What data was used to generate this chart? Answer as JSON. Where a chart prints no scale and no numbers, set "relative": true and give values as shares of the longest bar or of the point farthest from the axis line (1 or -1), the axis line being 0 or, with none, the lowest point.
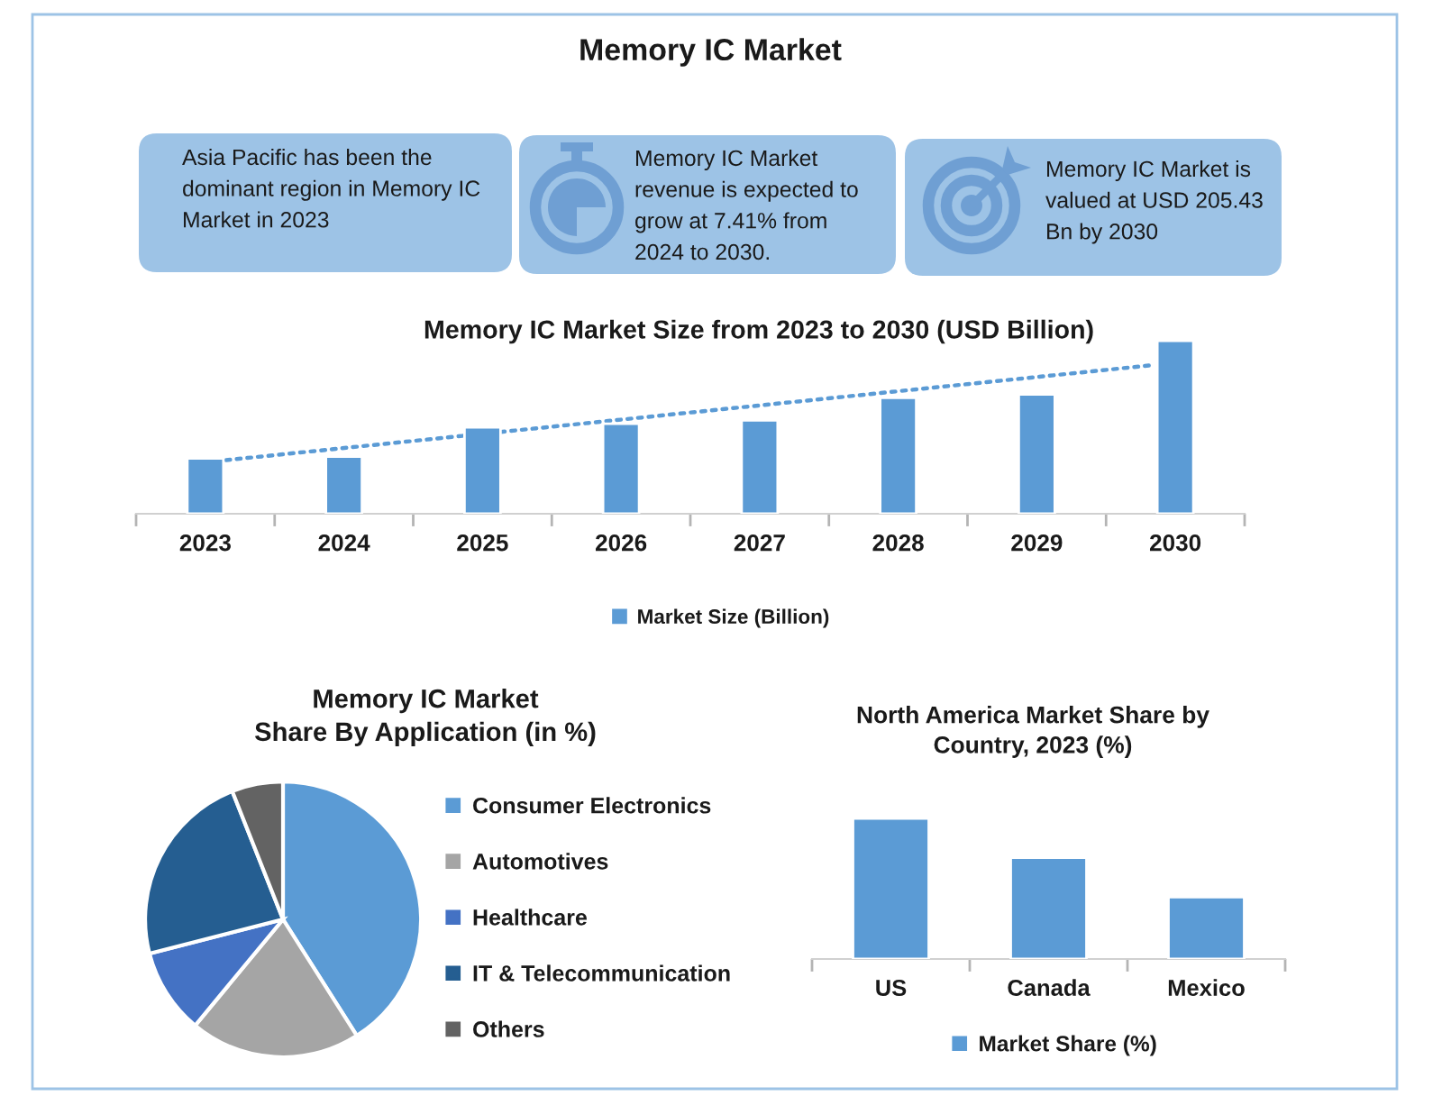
{
  "chart_data": [
    {
      "type": "other",
      "title": "Memory IC Market",
      "annotations": [
        "Asia Pacific has been the\ndominant region in Memory IC\nMarket in 2023",
        "Memory IC Market\nrevenue is expected to\ngrow at 7.41% from\n2024 to 2030.",
        "Memory IC Market is\nvalued at USD 205.43\nBn by 2030"
      ]
    },
    {
      "type": "bar",
      "title": "Memory IC Market Size from 2023 to 2030 (USD Billion)",
      "x": [
        2023,
        2024,
        2025,
        2026,
        2027,
        2028,
        2029,
        2030
      ],
      "xlim": [
        2022.5,
        2030.5
      ],
      "xticks": [
        {
          "value": 2022.5,
          "label": null
        },
        2023,
        {
          "value": 2023.5,
          "label": null
        },
        2024,
        {
          "value": 2024.5,
          "label": null
        },
        2025,
        {
          "value": 2025.5,
          "label": null
        },
        2026,
        {
          "value": 2026.5,
          "label": null
        },
        2027,
        {
          "value": 2027.5,
          "label": null
        },
        2028,
        {
          "value": 2028.5,
          "label": null
        },
        2029,
        {
          "value": 2029.5,
          "label": null
        },
        2030,
        {
          "value": 2030.5,
          "label": null
        }
      ],
      "relative": true,
      "legend": "bottom",
      "series": [
        {
          "name": "Market Size (Billion)",
          "color": "#5b9bd5",
          "values": [
            0.32,
            0.33,
            0.5,
            0.52,
            0.54,
            0.67,
            0.69,
            1
          ]
        },
        {
          "type": "line",
          "color": "#5b9bd5",
          "line_style": "dotted",
          "x": [
            2023.15,
            2029.85
          ],
          "values": [
            0.31,
            0.86
          ]
        }
      ]
    },
    {
      "type": "pie",
      "title": "Memory IC Market\nShare By Application (in %)",
      "categories": [
        "Consumer Electronics",
        "Automotives",
        "Healthcare",
        "IT & Telecommunication",
        "Others"
      ],
      "values": [
        41,
        20,
        10,
        23,
        6
      ],
      "colors": [
        "#5b9bd5",
        "#a5a5a5",
        "#4472c4",
        "#255e91",
        "#636363"
      ],
      "legend": "right"
    },
    {
      "type": "bar",
      "title": "North America Market Share by\nCountry, 2023 (%)",
      "categories": [
        "US",
        "Canada",
        "Mexico"
      ],
      "relative": true,
      "legend": "bottom",
      "series": [
        {
          "name": "Market Share (%)",
          "color": "#5b9bd5",
          "values": [
            1,
            0.72,
            0.44
          ]
        }
      ]
    }
  ]
}
